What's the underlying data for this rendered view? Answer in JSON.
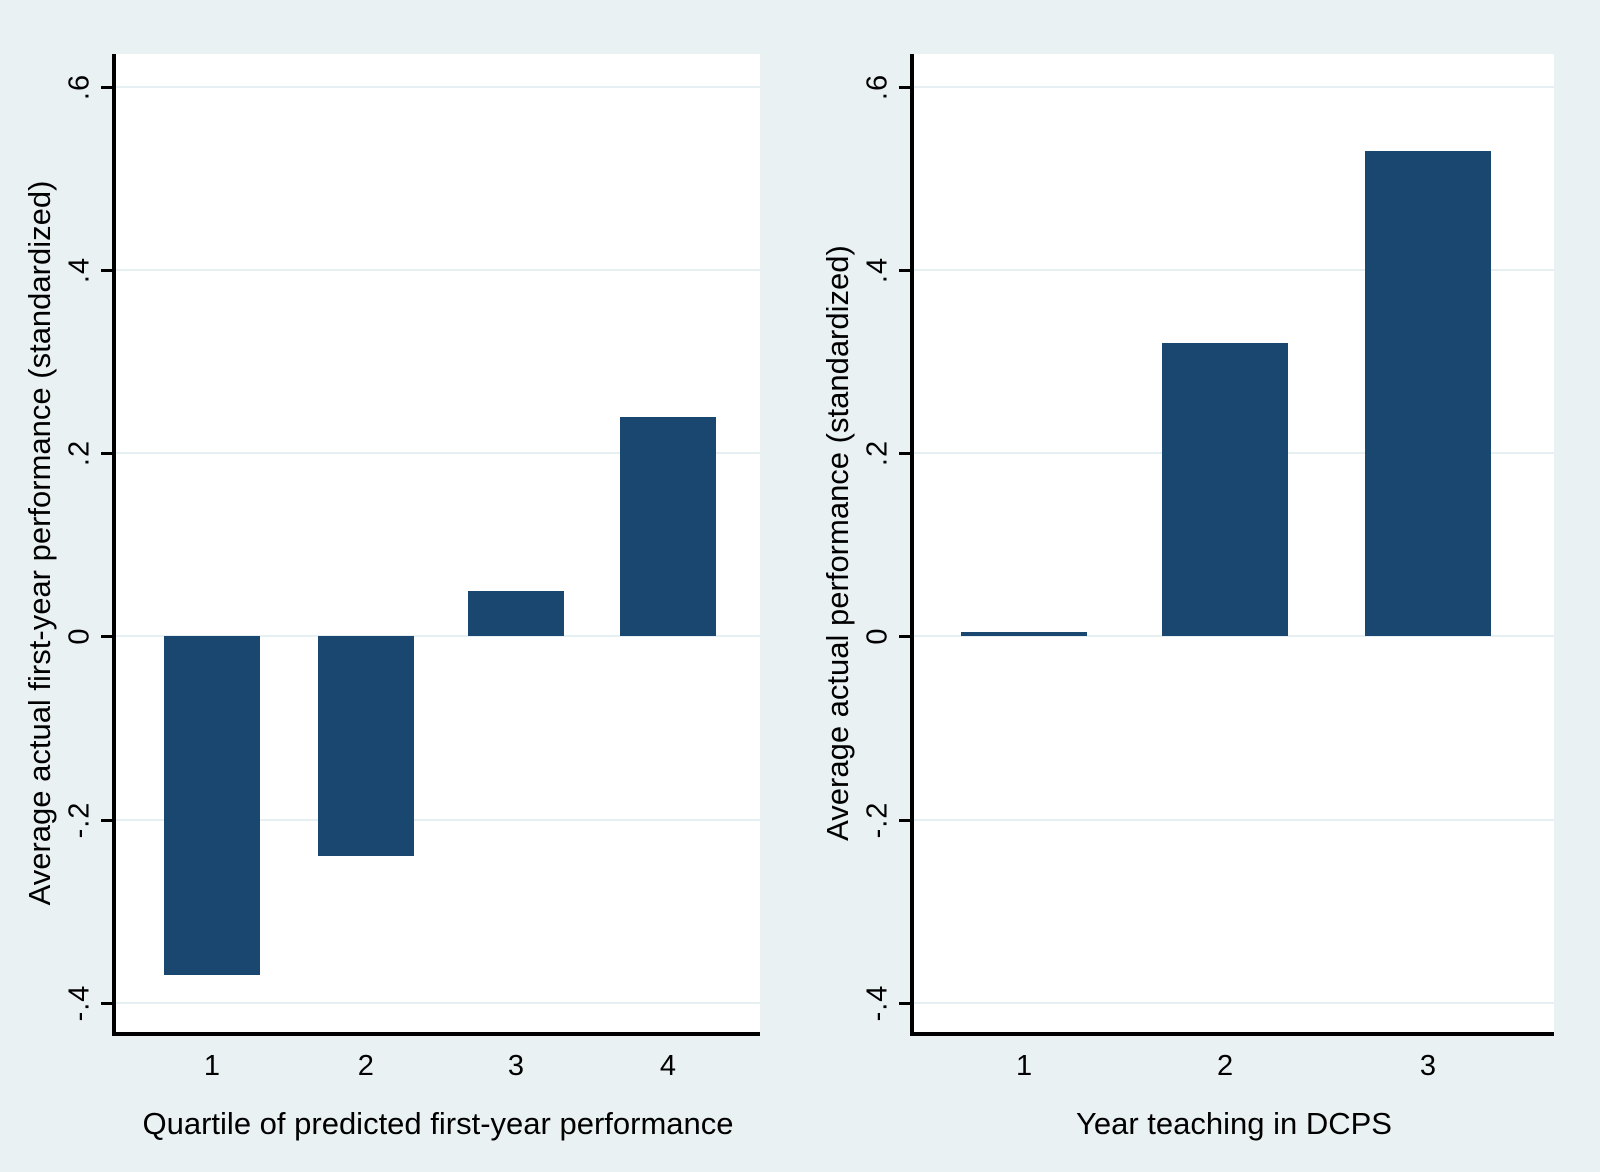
{
  "colors": {
    "page_background": "#EAF1F3",
    "plot_background": "#FFFFFF",
    "gridline": "#E6EFF2",
    "axis_line": "#000000",
    "text": "#000000",
    "bar_fill": "#1A476F"
  },
  "chart_data": [
    {
      "type": "bar",
      "panel": "left",
      "title": "",
      "categories": [
        "1",
        "2",
        "3",
        "4"
      ],
      "values": [
        -0.37,
        -0.24,
        0.05,
        0.24
      ],
      "xlabel": "Quartile of predicted first-year performance",
      "ylabel": "Average actual first-year performance (standardized)",
      "ytick_values": [
        0.6,
        0.4,
        0.2,
        0,
        -0.2,
        -0.4
      ],
      "ytick_labels": [
        ".6",
        ".4",
        ".2",
        "0",
        "-.2",
        "-.4"
      ],
      "ylim": [
        -0.432,
        0.636
      ],
      "grid": true,
      "legend": "none",
      "bar_color": "#1A476F",
      "bar_centers_frac": [
        0.149,
        0.388,
        0.621,
        0.857
      ],
      "bar_width_frac": 0.148
    },
    {
      "type": "bar",
      "panel": "right",
      "title": "",
      "categories": [
        "1",
        "2",
        "3"
      ],
      "values": [
        0.005,
        0.32,
        0.53
      ],
      "xlabel": "Year teaching in DCPS",
      "ylabel": "Average actual performance (standardized)",
      "ytick_values": [
        0.6,
        0.4,
        0.2,
        0,
        -0.2,
        -0.4
      ],
      "ytick_labels": [
        ".6",
        ".4",
        ".2",
        "0",
        "-.2",
        "-.4"
      ],
      "ylim": [
        -0.432,
        0.636
      ],
      "grid": true,
      "legend": "none",
      "bar_color": "#1A476F",
      "bar_centers_frac": [
        0.172,
        0.486,
        0.803
      ],
      "bar_width_frac": 0.197
    }
  ]
}
